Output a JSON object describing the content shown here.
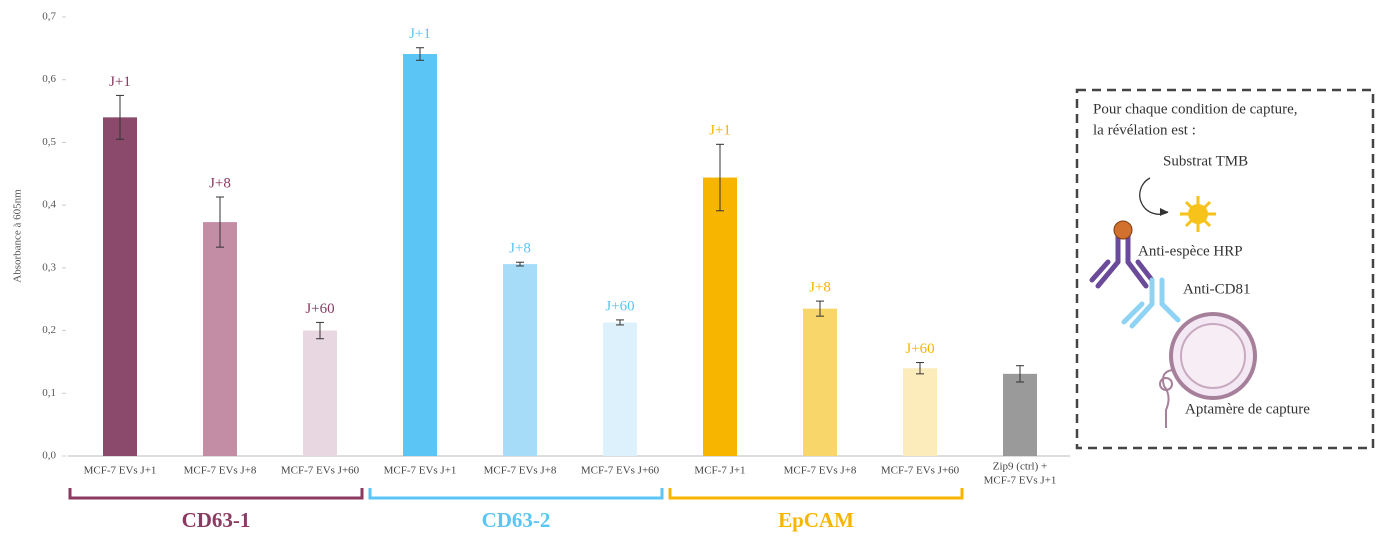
{
  "chart_data": {
    "type": "bar",
    "y_label": "Absorbance à 605nm",
    "categories": [
      "MCF-7 EVs J+1",
      "MCF-7 EVs J+8",
      "MCF-7 EVs J+60",
      "MCF-7 EVs J+1",
      "MCF-7 EVs J+8",
      "MCF-7 EVs J+60",
      "MCF-7 J+1",
      "MCF-7 EVs J+8",
      "MCF-7 EVs J+60",
      [
        "Zip9 (ctrl) +",
        "MCF-7 EVs J+1"
      ]
    ],
    "values": [
      0.54,
      0.373,
      0.2,
      0.641,
      0.306,
      0.213,
      0.444,
      0.235,
      0.14,
      0.131
    ],
    "errors": [
      0.035,
      0.04,
      0.013,
      0.01,
      0.003,
      0.004,
      0.053,
      0.012,
      0.009,
      0.013
    ],
    "colors": [
      "#8b4a6b",
      "#c48da6",
      "#e8d6e0",
      "#5bc5f5",
      "#a6dcf8",
      "#ddf1fc",
      "#f7b500",
      "#f9d66a",
      "#fcecbc",
      "#9a9a9a"
    ],
    "bar_labels": [
      "J+1",
      "J+8",
      "J+60",
      "J+1",
      "J+8",
      "J+60",
      "J+1",
      "J+8",
      "J+60",
      null
    ],
    "groups": [
      {
        "label": "CD63-1",
        "color": "#8b3a62"
      },
      {
        "label": "CD63-2",
        "color": "#5bc5f5"
      },
      {
        "label": "EpCAM",
        "color": "#f7b500"
      }
    ],
    "ylim": [
      0,
      0.7
    ],
    "yticks": [
      {
        "value": 0,
        "label": "0,0"
      },
      {
        "value": 0.1,
        "label": "0,1"
      },
      {
        "value": 0.2,
        "label": "0,2"
      },
      {
        "value": 0.3,
        "label": "0,3"
      },
      {
        "value": 0.4,
        "label": "0,4"
      },
      {
        "value": 0.5,
        "label": "0,5"
      },
      {
        "value": 0.6,
        "label": "0,6"
      },
      {
        "value": 0.7,
        "label": "0,7"
      }
    ],
    "annotation_box": {
      "lines": [
        "Pour chaque condition de capture,",
        "la révélation est :"
      ],
      "labels": [
        "Substrat TMB",
        "Anti-espèce HRP",
        "Anti-CD81",
        "Aptamère de capture"
      ]
    }
  }
}
